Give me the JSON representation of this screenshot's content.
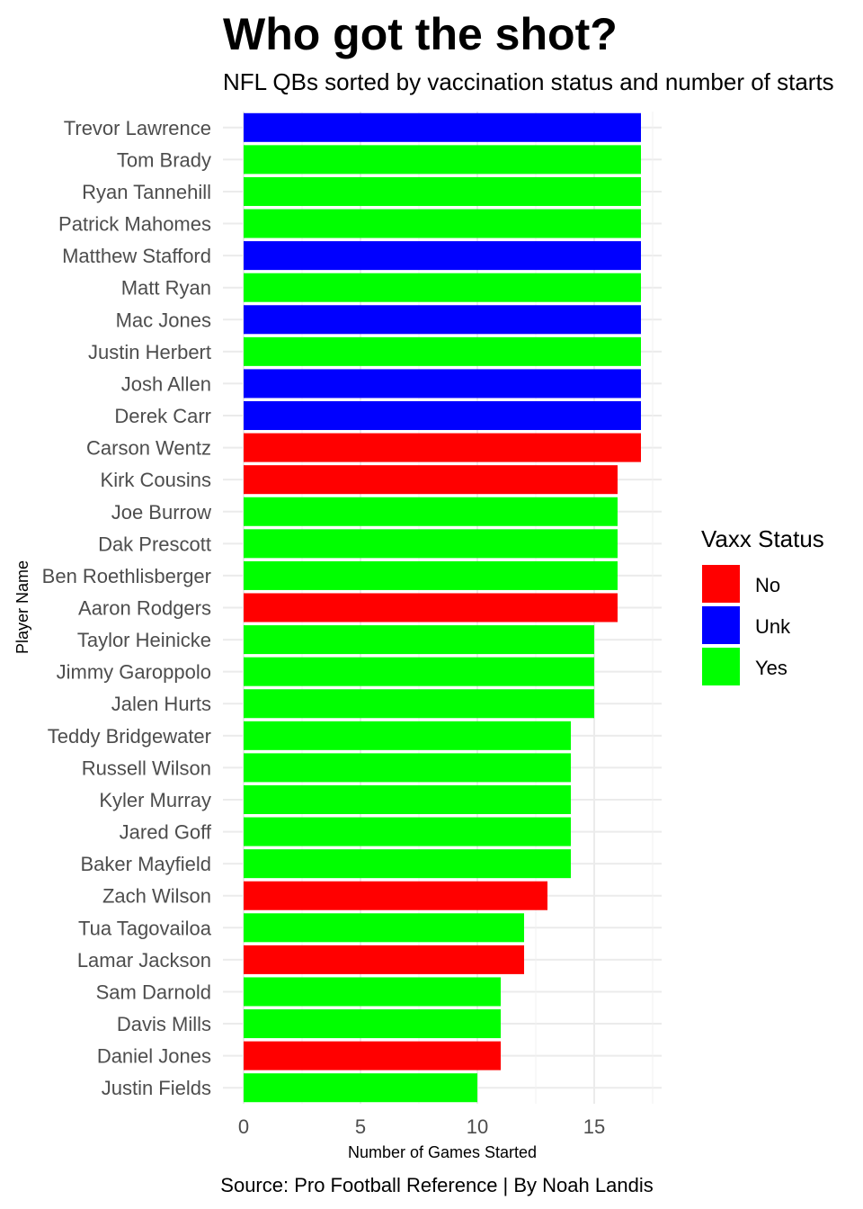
{
  "chart_data": {
    "type": "bar",
    "orientation": "horizontal",
    "title": "Who got the shot?",
    "subtitle": "NFL QBs sorted by vaccination status and number of starts",
    "xlabel": "Number of Games Started",
    "ylabel": "Player Name",
    "caption": "Source: Pro Football Reference | By Noah Landis",
    "xlim": [
      0,
      17.85
    ],
    "x_ticks": [
      0,
      5,
      10,
      15
    ],
    "grid": true,
    "legend": {
      "title": "Vaxx Status",
      "position": "right",
      "entries": [
        {
          "label": "No",
          "color": "#ff0000"
        },
        {
          "label": "Unk",
          "color": "#0000ff"
        },
        {
          "label": "Yes",
          "color": "#00ff00"
        }
      ]
    },
    "categories": [
      "Trevor Lawrence",
      "Tom Brady",
      "Ryan Tannehill",
      "Patrick Mahomes",
      "Matthew Stafford",
      "Matt Ryan",
      "Mac Jones",
      "Justin Herbert",
      "Josh Allen",
      "Derek Carr",
      "Carson Wentz",
      "Kirk Cousins",
      "Joe Burrow",
      "Dak Prescott",
      "Ben Roethlisberger",
      "Aaron Rodgers",
      "Taylor Heinicke",
      "Jimmy Garoppolo",
      "Jalen Hurts",
      "Teddy Bridgewater",
      "Russell Wilson",
      "Kyler Murray",
      "Jared Goff",
      "Baker Mayfield",
      "Zach Wilson",
      "Tua Tagovailoa",
      "Lamar Jackson",
      "Sam Darnold",
      "Davis Mills",
      "Daniel Jones",
      "Justin Fields"
    ],
    "values": [
      17,
      17,
      17,
      17,
      17,
      17,
      17,
      17,
      17,
      17,
      17,
      16,
      16,
      16,
      16,
      16,
      15,
      15,
      15,
      14,
      14,
      14,
      14,
      14,
      13,
      12,
      12,
      11,
      11,
      11,
      10
    ],
    "status": [
      "Unk",
      "Yes",
      "Yes",
      "Yes",
      "Unk",
      "Yes",
      "Unk",
      "Yes",
      "Unk",
      "Unk",
      "No",
      "No",
      "Yes",
      "Yes",
      "Yes",
      "No",
      "Yes",
      "Yes",
      "Yes",
      "Yes",
      "Yes",
      "Yes",
      "Yes",
      "Yes",
      "No",
      "Yes",
      "No",
      "Yes",
      "Yes",
      "No",
      "Yes"
    ]
  }
}
